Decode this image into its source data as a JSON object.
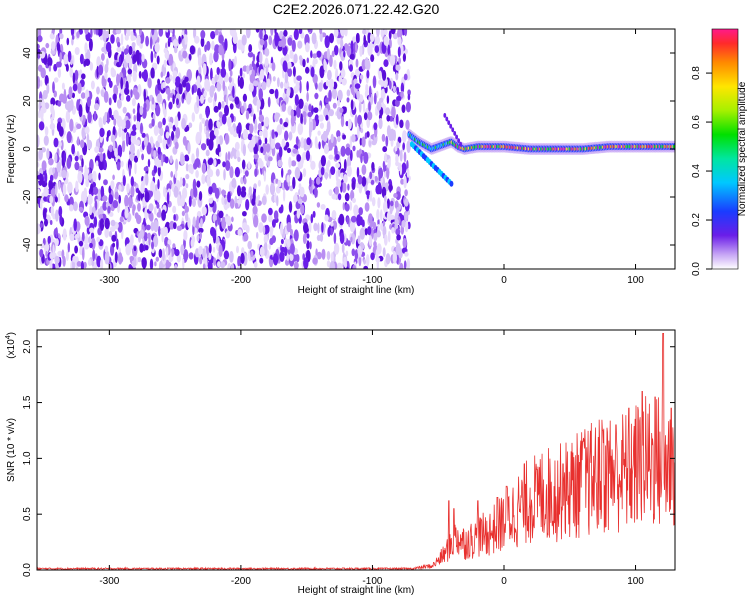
{
  "title": "C2E2.2026.071.22.42.G20",
  "chart_data": [
    {
      "type": "heatmap",
      "name": "spectrogram",
      "xlabel": "Height of straight line (km)",
      "ylabel": "Frequency (Hz)",
      "xlim": [
        -355,
        130
      ],
      "ylim": [
        -50,
        50
      ],
      "xticks": [
        -300,
        -200,
        -100,
        0,
        100
      ],
      "xtick_labels": [
        "-300",
        "-200",
        "-100",
        "0",
        "100"
      ],
      "yticks": [
        -40,
        -20,
        0,
        20,
        40
      ],
      "ytick_labels": [
        "-40",
        "-20",
        "0",
        "20",
        "40"
      ],
      "noise_region_x": [
        -355,
        -72
      ],
      "signal_trace": {
        "x": [
          -72,
          -65,
          -55,
          -45,
          -40,
          -35,
          -30,
          -20,
          0,
          20,
          40,
          60,
          80,
          100,
          130
        ],
        "y": [
          6,
          3,
          0,
          2,
          3,
          1,
          0,
          1,
          1,
          0,
          0,
          0,
          1,
          1,
          1
        ]
      },
      "colorbar": {
        "label": "Normalized spectral amplitude",
        "range": [
          0,
          0.98
        ],
        "ticks": [
          0.0,
          0.2,
          0.4,
          0.6,
          0.8
        ],
        "tick_labels": [
          "0.0",
          "0.2",
          "0.4",
          "0.6",
          "0.8"
        ]
      }
    },
    {
      "type": "line",
      "name": "snr",
      "xlabel": "Height of straight line (km)",
      "ylabel": "SNR (10 * v/v)",
      "scale_label": "(x10",
      "scale_exp": "4",
      "scale_close": ")",
      "xlim": [
        -355,
        130
      ],
      "ylim": [
        0,
        2.15
      ],
      "xticks": [
        -300,
        -200,
        -100,
        0,
        100
      ],
      "xtick_labels": [
        "-300",
        "-200",
        "-100",
        "0",
        "100"
      ],
      "yticks": [
        0.0,
        0.5,
        1.0,
        1.5,
        2.0
      ],
      "ytick_labels": [
        "0.0",
        "0.5",
        "1.0",
        "1.5",
        "2.0"
      ],
      "series": [
        {
          "color": "#e8302e",
          "x": [
            -355,
            -300,
            -250,
            -200,
            -150,
            -100,
            -70,
            -55,
            -45,
            -40,
            -35,
            -30,
            -20,
            -10,
            0,
            10,
            20,
            30,
            40,
            50,
            60,
            70,
            80,
            90,
            100,
            110,
            120,
            130
          ],
          "y": [
            0.01,
            0.01,
            0.01,
            0.01,
            0.01,
            0.01,
            0.01,
            0.03,
            0.15,
            0.25,
            0.3,
            0.25,
            0.3,
            0.35,
            0.45,
            0.55,
            0.65,
            0.7,
            0.7,
            0.75,
            0.8,
            0.85,
            0.9,
            0.9,
            0.95,
            1.0,
            1.0,
            0.95
          ],
          "peaks": [
            {
              "x": -42,
              "y": 0.62
            },
            {
              "x": -38,
              "y": 0.55
            },
            {
              "x": -20,
              "y": 0.62
            },
            {
              "x": -5,
              "y": 0.65
            },
            {
              "x": 2,
              "y": 0.75
            },
            {
              "x": 25,
              "y": 0.9
            },
            {
              "x": 45,
              "y": 0.95
            },
            {
              "x": 60,
              "y": 1.15
            },
            {
              "x": 75,
              "y": 1.25
            },
            {
              "x": 85,
              "y": 1.3
            },
            {
              "x": 95,
              "y": 1.45
            },
            {
              "x": 105,
              "y": 1.6
            },
            {
              "x": 115,
              "y": 1.55
            },
            {
              "x": 121,
              "y": 2.12
            },
            {
              "x": 127,
              "y": 1.45
            }
          ]
        }
      ]
    }
  ]
}
